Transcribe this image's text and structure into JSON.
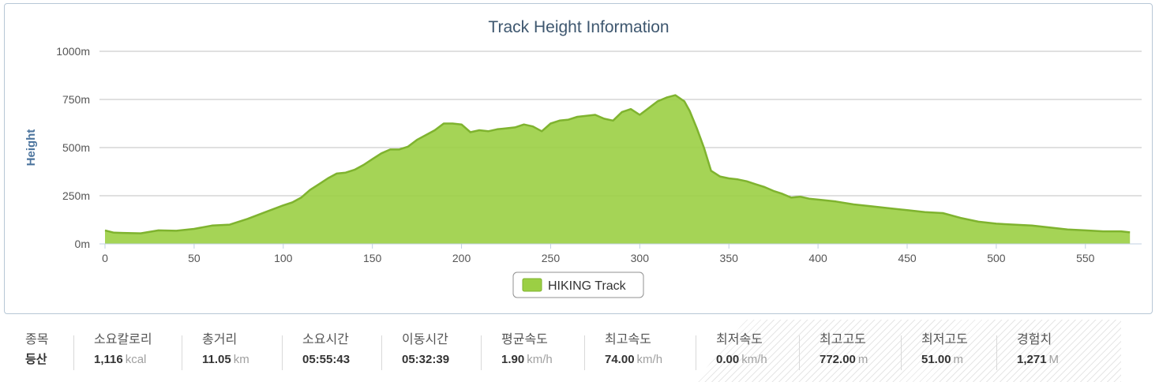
{
  "chart_data": {
    "type": "area",
    "title": "Track Height Information",
    "ylabel": "Height",
    "xlabel": "",
    "ylim": [
      0,
      1000
    ],
    "xlim": [
      0,
      578
    ],
    "y_ticks": [
      {
        "value": 0,
        "label": "0m"
      },
      {
        "value": 250,
        "label": "250m"
      },
      {
        "value": 500,
        "label": "500m"
      },
      {
        "value": 750,
        "label": "750m"
      },
      {
        "value": 1000,
        "label": "1000m"
      }
    ],
    "x_ticks": [
      0,
      50,
      100,
      150,
      200,
      250,
      300,
      350,
      400,
      450,
      500,
      550
    ],
    "legend_position": "bottom-center",
    "series": [
      {
        "name": "HIKING Track",
        "color": "#9bcf44",
        "x": [
          0,
          5,
          10,
          20,
          30,
          40,
          50,
          60,
          70,
          80,
          90,
          100,
          105,
          110,
          115,
          120,
          125,
          130,
          135,
          140,
          145,
          150,
          155,
          160,
          165,
          170,
          175,
          180,
          185,
          190,
          195,
          200,
          205,
          210,
          215,
          220,
          225,
          230,
          235,
          240,
          245,
          250,
          255,
          260,
          265,
          270,
          275,
          280,
          285,
          290,
          295,
          300,
          305,
          310,
          315,
          320,
          325,
          328,
          332,
          336,
          340,
          345,
          350,
          355,
          360,
          365,
          370,
          375,
          380,
          385,
          390,
          395,
          400,
          410,
          420,
          430,
          440,
          450,
          460,
          470,
          480,
          490,
          500,
          510,
          520,
          530,
          540,
          550,
          560,
          570,
          575
        ],
        "values": [
          70,
          58,
          57,
          55,
          70,
          68,
          78,
          95,
          100,
          130,
          165,
          200,
          215,
          240,
          280,
          310,
          340,
          365,
          370,
          385,
          410,
          440,
          470,
          490,
          490,
          505,
          540,
          565,
          590,
          625,
          625,
          620,
          580,
          590,
          585,
          595,
          600,
          605,
          620,
          610,
          585,
          625,
          640,
          645,
          660,
          665,
          670,
          650,
          640,
          685,
          700,
          670,
          705,
          740,
          760,
          772,
          740,
          690,
          600,
          500,
          380,
          350,
          340,
          335,
          325,
          310,
          295,
          275,
          260,
          240,
          245,
          235,
          230,
          220,
          205,
          195,
          185,
          175,
          165,
          160,
          135,
          115,
          105,
          100,
          95,
          85,
          75,
          70,
          65,
          65,
          60
        ]
      }
    ]
  },
  "stats": [
    {
      "label": "종목",
      "value": "등산",
      "unit": ""
    },
    {
      "label": "소요칼로리",
      "value": "1,116",
      "unit": "kcal"
    },
    {
      "label": "총거리",
      "value": "11.05",
      "unit": "km"
    },
    {
      "label": "소요시간",
      "value": "05:55:43",
      "unit": ""
    },
    {
      "label": "이동시간",
      "value": "05:32:39",
      "unit": ""
    },
    {
      "label": "평균속도",
      "value": "1.90",
      "unit": "km/h"
    },
    {
      "label": "최고속도",
      "value": "74.00",
      "unit": "km/h"
    },
    {
      "label": "최저속도",
      "value": "0.00",
      "unit": "km/h"
    },
    {
      "label": "최고고도",
      "value": "772.00",
      "unit": "m"
    },
    {
      "label": "최저고도",
      "value": "51.00",
      "unit": "m"
    },
    {
      "label": "경험치",
      "value": "1,271",
      "unit": "M"
    }
  ]
}
